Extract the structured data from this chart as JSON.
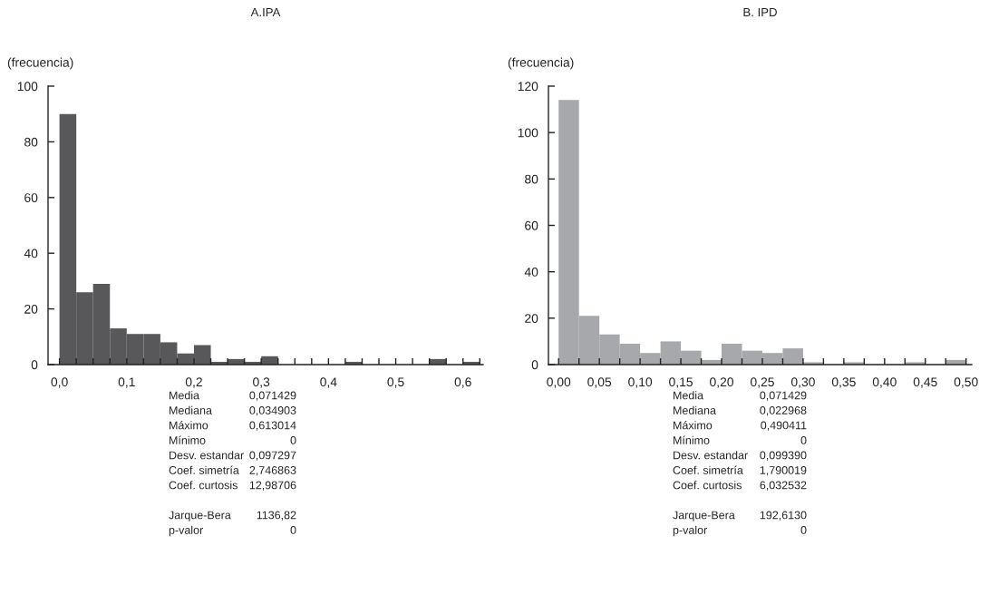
{
  "chart_data": [
    {
      "type": "histogram",
      "title": "A.IPA",
      "ylabel": "(frecuencia)",
      "color": "#58585a",
      "bins": [
        0,
        0.025,
        0.05,
        0.075,
        0.1,
        0.125,
        0.15,
        0.175,
        0.2,
        0.225,
        0.25,
        0.275,
        0.3,
        0.325,
        0.35,
        0.375,
        0.4,
        0.425,
        0.45,
        0.475,
        0.5,
        0.525,
        0.55,
        0.575,
        0.6,
        0.625
      ],
      "values": [
        90,
        26,
        29,
        13,
        11,
        11,
        8,
        4,
        7,
        1,
        2,
        1,
        3,
        0,
        0,
        0,
        0,
        1,
        0,
        0,
        0,
        0,
        2,
        0,
        1
      ],
      "xlim": [
        -0.017,
        0.63
      ],
      "ylim": [
        0,
        100
      ],
      "yticks": [
        0,
        20,
        40,
        60,
        80,
        100
      ],
      "xticks": [
        {
          "value": 0,
          "label": "0,0"
        },
        {
          "value": 0.025,
          "label": null
        },
        {
          "value": 0.05,
          "label": null
        },
        {
          "value": 0.075,
          "label": null
        },
        {
          "value": 0.1,
          "label": "0,1"
        },
        {
          "value": 0.125,
          "label": null
        },
        {
          "value": 0.15,
          "label": null
        },
        {
          "value": 0.175,
          "label": null
        },
        {
          "value": 0.2,
          "label": "0,2"
        },
        {
          "value": 0.225,
          "label": null
        },
        {
          "value": 0.25,
          "label": null
        },
        {
          "value": 0.275,
          "label": null
        },
        {
          "value": 0.3,
          "label": "0,3"
        },
        {
          "value": 0.325,
          "label": null
        },
        {
          "value": 0.35,
          "label": null
        },
        {
          "value": 0.375,
          "label": null
        },
        {
          "value": 0.4,
          "label": "0,4"
        },
        {
          "value": 0.425,
          "label": null
        },
        {
          "value": 0.45,
          "label": null
        },
        {
          "value": 0.475,
          "label": null
        },
        {
          "value": 0.5,
          "label": "0,5"
        },
        {
          "value": 0.525,
          "label": null
        },
        {
          "value": 0.55,
          "label": null
        },
        {
          "value": 0.575,
          "label": null
        },
        {
          "value": 0.6,
          "label": "0,6"
        },
        {
          "value": 0.625,
          "label": null
        }
      ],
      "grid": false,
      "annotations": [
        "Media 0,071429",
        "Mediana 0,034903",
        "Máximo 0,613014",
        "Mínimo 0",
        "Desv. estandar 0,097297",
        "Coef. simetría 2,746863",
        "Coef. curtosis 12,98706",
        "Jarque-Bera 1136,82",
        "p-valor 0"
      ]
    },
    {
      "type": "histogram",
      "title": "B. IPD",
      "ylabel": "(frecuencia)",
      "color": "#a7a8ab",
      "bins": [
        0,
        0.025,
        0.05,
        0.075,
        0.1,
        0.125,
        0.15,
        0.175,
        0.2,
        0.225,
        0.25,
        0.275,
        0.3,
        0.325,
        0.35,
        0.375,
        0.4,
        0.425,
        0.45,
        0.475,
        0.5
      ],
      "values": [
        114,
        21,
        13,
        9,
        5,
        10,
        6,
        2,
        9,
        6,
        5,
        7,
        1,
        0,
        1,
        0,
        0,
        1,
        0,
        2
      ],
      "xlim": [
        -0.0125,
        0.507
      ],
      "ylim": [
        0,
        120
      ],
      "yticks": [
        0,
        20,
        40,
        60,
        80,
        100,
        120
      ],
      "xticks": [
        {
          "value": 0,
          "label": "0,00"
        },
        {
          "value": 0.025,
          "label": null
        },
        {
          "value": 0.05,
          "label": "0,05"
        },
        {
          "value": 0.075,
          "label": null
        },
        {
          "value": 0.1,
          "label": "0,10"
        },
        {
          "value": 0.125,
          "label": null
        },
        {
          "value": 0.15,
          "label": "0,15"
        },
        {
          "value": 0.175,
          "label": null
        },
        {
          "value": 0.2,
          "label": "0,20"
        },
        {
          "value": 0.225,
          "label": null
        },
        {
          "value": 0.25,
          "label": "0,25"
        },
        {
          "value": 0.275,
          "label": null
        },
        {
          "value": 0.3,
          "label": "0,30"
        },
        {
          "value": 0.325,
          "label": null
        },
        {
          "value": 0.35,
          "label": "0,35"
        },
        {
          "value": 0.375,
          "label": null
        },
        {
          "value": 0.4,
          "label": "0,40"
        },
        {
          "value": 0.425,
          "label": null
        },
        {
          "value": 0.45,
          "label": "0,45"
        },
        {
          "value": 0.475,
          "label": null
        },
        {
          "value": 0.5,
          "label": "0,50"
        }
      ],
      "grid": false,
      "annotations": [
        "Media 0,071429",
        "Mediana 0,022968",
        "Máximo 0,490411",
        "Mínimo 0",
        "Desv. estandar 0,099390",
        "Coef. simetría 1,790019",
        "Coef. curtosis 6,032532",
        "Jarque-Bera 192,6130",
        "p-valor 0"
      ]
    }
  ]
}
